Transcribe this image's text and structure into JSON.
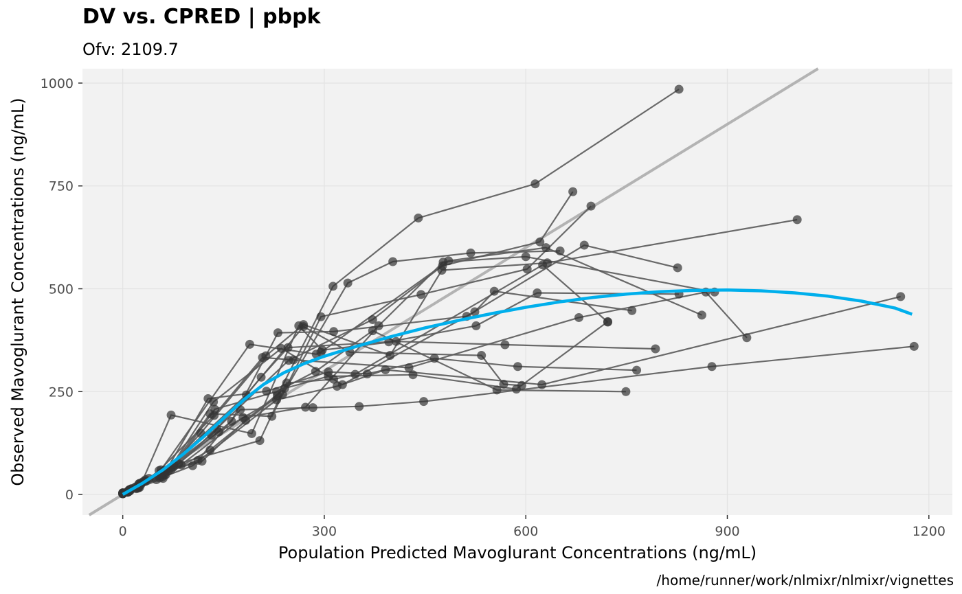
{
  "chart_data": {
    "type": "scatter",
    "title": "DV vs. CPRED | pbpk",
    "subtitle": "Ofv: 2109.7",
    "xlabel": "Population Predicted Mavoglurant Concentrations (ng/mL)",
    "ylabel": "Observed Mavoglurant Concentrations (ng/mL)",
    "caption": "/home/runner/work/nlmixr/nlmixr/vignettes",
    "xlim": [
      -60,
      1235
    ],
    "ylim": [
      -50,
      1035
    ],
    "xticks": [
      0,
      300,
      600,
      900,
      1200
    ],
    "yticks": [
      0,
      250,
      500,
      750,
      1000
    ],
    "grid": true,
    "colors": {
      "panel": "#F2F2F2",
      "grid": "#E3E3E3",
      "points": "#333333",
      "lines": "#5A5A5A",
      "identity": "#B3B3B3",
      "smooth": "#00AFEC"
    },
    "identity_line": {
      "slope": 1,
      "intercept": 0
    },
    "smooth": {
      "x": [
        0,
        30,
        60,
        90,
        120,
        150,
        180,
        210,
        240,
        270,
        300,
        350,
        400,
        450,
        500,
        550,
        600,
        650,
        700,
        750,
        800,
        850,
        900,
        950,
        1000,
        1050,
        1100,
        1150,
        1175
      ],
      "y": [
        0,
        28,
        60,
        98,
        140,
        185,
        230,
        268,
        296,
        318,
        336,
        361,
        384,
        405,
        423,
        440,
        455,
        468,
        479,
        487,
        493,
        496,
        497,
        495,
        490,
        482,
        470,
        453,
        438
      ]
    },
    "series": [
      {
        "x": [
          0,
          8,
          24,
          62,
          130,
          230,
          313,
          440,
          614,
          828
        ],
        "y": [
          2,
          6,
          18,
          47,
          108,
          240,
          506,
          672,
          755,
          985
        ]
      },
      {
        "x": [
          0,
          11,
          34,
          76,
          143,
          238,
          335,
          402,
          518,
          651
        ],
        "y": [
          3,
          9,
          32,
          72,
          152,
          243,
          514,
          566,
          587,
          592
        ]
      },
      {
        "x": [
          0,
          7,
          23,
          60,
          140,
          247,
          372,
          476,
          621,
          670
        ],
        "y": [
          2,
          7,
          16,
          39,
          160,
          326,
          425,
          556,
          614,
          736
        ]
      },
      {
        "x": [
          0,
          9,
          27,
          68,
          130,
          222,
          295,
          444,
          602,
          697
        ],
        "y": [
          3,
          10,
          24,
          57,
          196,
          190,
          432,
          486,
          548,
          701
        ]
      },
      {
        "x": [
          0,
          13,
          39,
          87,
          179,
          272,
          381,
          477,
          600,
          881
        ],
        "y": [
          4,
          14,
          39,
          72,
          187,
          212,
          410,
          565,
          578,
          492
        ]
      },
      {
        "x": [
          0,
          10,
          30,
          72,
          162,
          231,
          314,
          512,
          687,
          826
        ],
        "y": [
          4,
          12,
          31,
          61,
          178,
          393,
          396,
          433,
          606,
          551
        ]
      },
      {
        "x": [
          0,
          8,
          25,
          63,
          184,
          269,
          338,
          534,
          567,
          594
        ],
        "y": [
          3,
          8,
          27,
          59,
          242,
          408,
          346,
          338,
          268,
          265
        ]
      },
      {
        "x": [
          0,
          9,
          27,
          57,
          189,
          288,
          295,
          485,
          630,
          862
        ],
        "y": [
          3,
          8,
          27,
          60,
          365,
          341,
          346,
          568,
          600,
          436
        ]
      },
      {
        "x": [
          0,
          7,
          20,
          57,
          132,
          206,
          246,
          396,
          526,
          617,
          828
        ],
        "y": [
          2,
          5,
          19,
          52,
          144,
          285,
          357,
          371,
          410,
          490,
          487
        ]
      },
      {
        "x": [
          0,
          12,
          34,
          75,
          137,
          229,
          287,
          372,
          557,
          749
        ],
        "y": [
          3,
          13,
          36,
          66,
          207,
          250,
          299,
          398,
          254,
          250
        ]
      },
      {
        "x": [
          0,
          9,
          23,
          54,
          136,
          208,
          254,
          426,
          679,
          868,
          929
        ],
        "y": [
          2,
          7,
          19,
          58,
          192,
          333,
          327,
          308,
          430,
          492,
          381
        ]
      },
      {
        "x": [
          0,
          8,
          20,
          55,
          116,
          213,
          269,
          398,
          475,
          632,
          1004
        ],
        "y": [
          2,
          6,
          14,
          40,
          149,
          337,
          413,
          338,
          545,
          563,
          668
        ]
      },
      {
        "x": [
          0,
          9,
          25,
          72,
          192,
          262,
          297,
          407,
          569,
          793
        ],
        "y": [
          3,
          9,
          17,
          193,
          148,
          410,
          351,
          372,
          364,
          354
        ]
      },
      {
        "x": [
          0,
          8,
          22,
          59,
          127,
          214,
          306,
          364,
          464,
          588,
          765
        ],
        "y": [
          2,
          7,
          15,
          43,
          233,
          251,
          298,
          293,
          331,
          311,
          302
        ]
      },
      {
        "x": [
          0,
          9,
          26,
          64,
          135,
          236,
          327,
          524,
          553,
          758
        ],
        "y": [
          2,
          8,
          26,
          48,
          225,
          355,
          267,
          444,
          494,
          447
        ]
      },
      {
        "x": [
          0,
          11,
          32,
          83,
          204,
          244,
          314,
          346,
          625,
          722
        ],
        "y": [
          3,
          11,
          32,
          75,
          131,
          271,
          280,
          292,
          558,
          419
        ]
      },
      {
        "x": [
          0,
          7,
          18,
          50,
          104,
          229,
          319,
          391,
          624,
          1158
        ],
        "y": [
          2,
          6,
          17,
          36,
          70,
          230,
          263,
          303,
          267,
          481
        ]
      },
      {
        "x": [
          0,
          8,
          22,
          54,
          112,
          175,
          283,
          352,
          448,
          877,
          1178
        ],
        "y": [
          2,
          7,
          18,
          46,
          83,
          206,
          211,
          214,
          226,
          311,
          360
        ]
      },
      {
        "x": [
          0,
          9,
          24,
          58,
          118,
          183,
          241,
          306,
          432,
          586,
          722
        ],
        "y": [
          2,
          8,
          26,
          53,
          81,
          180,
          258,
          287,
          291,
          256,
          420
        ]
      }
    ]
  }
}
